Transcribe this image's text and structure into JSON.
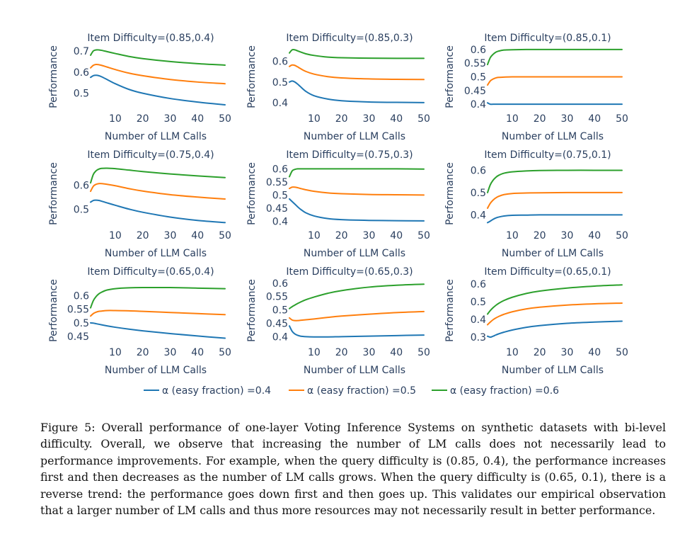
{
  "chart_data": {
    "type": "line",
    "legend_position": "bottom-center",
    "series_names": [
      "α (easy fraction) =0.4",
      "α (easy fraction) =0.5",
      "α (easy fraction) =0.6"
    ],
    "colors": [
      "#1f77b4",
      "#ff7f0e",
      "#2ca02c"
    ],
    "xlabel": "Number of LLM Calls",
    "ylabel": "Performance",
    "xlim": [
      1,
      50
    ],
    "xticks": [
      "10",
      "20",
      "30",
      "40",
      "50"
    ],
    "panels": [
      {
        "title": "Item Difficulty=(0.85,0.4)",
        "ylim": [
          0.435,
          0.72
        ],
        "yticks": [
          "0.5",
          "0.6",
          "0.7"
        ],
        "x": [
          1,
          2,
          3,
          4,
          5,
          7,
          10,
          15,
          20,
          30,
          40,
          50
        ],
        "series": [
          [
            0.575,
            0.583,
            0.585,
            0.583,
            0.578,
            0.565,
            0.545,
            0.518,
            0.5,
            0.475,
            0.458,
            0.445
          ],
          [
            0.62,
            0.632,
            0.636,
            0.635,
            0.632,
            0.624,
            0.612,
            0.595,
            0.583,
            0.565,
            0.553,
            0.545
          ],
          [
            0.68,
            0.7,
            0.705,
            0.705,
            0.703,
            0.697,
            0.688,
            0.674,
            0.664,
            0.65,
            0.64,
            0.633
          ]
        ]
      },
      {
        "title": "Item Difficulty=(0.85,0.3)",
        "ylim": [
          0.38,
          0.67
        ],
        "yticks": [
          "0.4",
          "0.5",
          "0.6"
        ],
        "x": [
          1,
          2,
          3,
          4,
          5,
          7,
          10,
          15,
          20,
          30,
          40,
          50
        ],
        "series": [
          [
            0.5,
            0.505,
            0.5,
            0.49,
            0.478,
            0.455,
            0.434,
            0.418,
            0.41,
            0.404,
            0.402,
            0.401
          ],
          [
            0.575,
            0.582,
            0.58,
            0.573,
            0.565,
            0.551,
            0.538,
            0.526,
            0.52,
            0.515,
            0.513,
            0.512
          ],
          [
            0.64,
            0.655,
            0.655,
            0.65,
            0.645,
            0.636,
            0.628,
            0.62,
            0.617,
            0.615,
            0.614,
            0.614
          ]
        ]
      },
      {
        "title": "Item Difficulty=(0.85,0.1)",
        "ylim": [
          0.39,
          0.61
        ],
        "yticks": [
          "0.4",
          "0.45",
          "0.5",
          "0.55",
          "0.6"
        ],
        "x": [
          1,
          2,
          3,
          4,
          5,
          7,
          10,
          15,
          20,
          30,
          40,
          50
        ],
        "series": [
          [
            0.405,
            0.4,
            0.4,
            0.4,
            0.4,
            0.4,
            0.4,
            0.4,
            0.4,
            0.4,
            0.4,
            0.4
          ],
          [
            0.47,
            0.485,
            0.492,
            0.496,
            0.498,
            0.499,
            0.5,
            0.5,
            0.5,
            0.5,
            0.5,
            0.5
          ],
          [
            0.545,
            0.57,
            0.582,
            0.59,
            0.594,
            0.598,
            0.599,
            0.6,
            0.6,
            0.6,
            0.6,
            0.6
          ]
        ]
      },
      {
        "title": "Item Difficulty=(0.75,0.4)",
        "ylim": [
          0.44,
          0.69
        ],
        "yticks": [
          "0.5",
          "0.6"
        ],
        "x": [
          1,
          2,
          3,
          4,
          5,
          7,
          10,
          15,
          20,
          30,
          40,
          50
        ],
        "series": [
          [
            0.53,
            0.537,
            0.538,
            0.537,
            0.534,
            0.527,
            0.517,
            0.501,
            0.488,
            0.468,
            0.454,
            0.445
          ],
          [
            0.575,
            0.596,
            0.604,
            0.607,
            0.607,
            0.604,
            0.598,
            0.586,
            0.576,
            0.561,
            0.551,
            0.543
          ],
          [
            0.61,
            0.645,
            0.66,
            0.667,
            0.67,
            0.671,
            0.669,
            0.663,
            0.657,
            0.647,
            0.639,
            0.632
          ]
        ]
      },
      {
        "title": "Item Difficulty=(0.75,0.3)",
        "ylim": [
          0.39,
          0.62
        ],
        "yticks": [
          "0.4",
          "0.45",
          "0.5",
          "0.55",
          "0.6"
        ],
        "x": [
          1,
          2,
          3,
          4,
          5,
          7,
          10,
          15,
          20,
          30,
          40,
          50
        ],
        "series": [
          [
            0.485,
            0.475,
            0.465,
            0.455,
            0.446,
            0.432,
            0.42,
            0.41,
            0.406,
            0.403,
            0.402,
            0.401
          ],
          [
            0.525,
            0.53,
            0.53,
            0.528,
            0.525,
            0.52,
            0.514,
            0.508,
            0.505,
            0.502,
            0.501,
            0.5
          ],
          [
            0.57,
            0.592,
            0.598,
            0.6,
            0.6,
            0.6,
            0.6,
            0.6,
            0.6,
            0.6,
            0.6,
            0.599
          ]
        ]
      },
      {
        "title": "Item Difficulty=(0.75,0.1)",
        "ylim": [
          0.36,
          0.63
        ],
        "yticks": [
          "0.4",
          "0.5",
          "0.6"
        ],
        "x": [
          1,
          2,
          3,
          4,
          5,
          7,
          10,
          15,
          20,
          30,
          40,
          50
        ],
        "series": [
          [
            0.365,
            0.372,
            0.38,
            0.386,
            0.39,
            0.395,
            0.398,
            0.399,
            0.4,
            0.4,
            0.4,
            0.4
          ],
          [
            0.43,
            0.452,
            0.466,
            0.476,
            0.483,
            0.491,
            0.496,
            0.498,
            0.499,
            0.5,
            0.5,
            0.5
          ],
          [
            0.5,
            0.535,
            0.555,
            0.568,
            0.577,
            0.587,
            0.593,
            0.597,
            0.599,
            0.6,
            0.6,
            0.6
          ]
        ]
      },
      {
        "title": "Item Difficulty=(0.65,0.4)",
        "ylim": [
          0.435,
          0.655
        ],
        "yticks": [
          "0.45",
          "0.5",
          "0.55",
          "0.6"
        ],
        "x": [
          1,
          2,
          3,
          4,
          5,
          7,
          10,
          15,
          20,
          30,
          40,
          50
        ],
        "series": [
          [
            0.5,
            0.499,
            0.497,
            0.495,
            0.493,
            0.489,
            0.484,
            0.477,
            0.471,
            0.461,
            0.452,
            0.444
          ],
          [
            0.525,
            0.534,
            0.539,
            0.542,
            0.543,
            0.545,
            0.545,
            0.544,
            0.542,
            0.538,
            0.534,
            0.53
          ],
          [
            0.555,
            0.581,
            0.596,
            0.606,
            0.612,
            0.62,
            0.625,
            0.628,
            0.629,
            0.629,
            0.627,
            0.625
          ]
        ]
      },
      {
        "title": "Item Difficulty=(0.65,0.3)",
        "ylim": [
          0.385,
          0.61
        ],
        "yticks": [
          "0.4",
          "0.45",
          "0.5",
          "0.55",
          "0.6"
        ],
        "x": [
          1,
          2,
          3,
          4,
          5,
          7,
          10,
          15,
          20,
          30,
          40,
          50
        ],
        "series": [
          [
            0.44,
            0.42,
            0.41,
            0.405,
            0.402,
            0.4,
            0.399,
            0.399,
            0.4,
            0.402,
            0.404,
            0.406
          ],
          [
            0.47,
            0.462,
            0.46,
            0.46,
            0.461,
            0.463,
            0.466,
            0.472,
            0.477,
            0.484,
            0.49,
            0.494
          ],
          [
            0.505,
            0.512,
            0.518,
            0.524,
            0.529,
            0.538,
            0.548,
            0.562,
            0.572,
            0.585,
            0.592,
            0.596
          ]
        ]
      },
      {
        "title": "Item Difficulty=(0.65,0.1)",
        "ylim": [
          0.28,
          0.62
        ],
        "yticks": [
          "0.3",
          "0.4",
          "0.5",
          "0.6"
        ],
        "x": [
          1,
          2,
          3,
          4,
          5,
          7,
          10,
          15,
          20,
          30,
          40,
          50
        ],
        "series": [
          [
            0.305,
            0.3,
            0.305,
            0.312,
            0.318,
            0.328,
            0.34,
            0.355,
            0.365,
            0.378,
            0.385,
            0.39
          ],
          [
            0.37,
            0.385,
            0.398,
            0.408,
            0.416,
            0.429,
            0.443,
            0.459,
            0.469,
            0.481,
            0.488,
            0.492
          ],
          [
            0.43,
            0.45,
            0.466,
            0.479,
            0.49,
            0.507,
            0.525,
            0.546,
            0.56,
            0.577,
            0.588,
            0.595
          ]
        ]
      }
    ]
  },
  "caption": "Figure 5: Overall performance of one-layer Voting Inference Systems on synthetic datasets with bi-level difficulty. Overall, we observe that increasing the number of LM calls does not necessarily lead to performance improvements. For example, when the query difficulty is (0.85, 0.4), the performance increases first and then decreases as the number of LM calls grows. When the query difficulty is (0.65, 0.1), there is a reverse trend: the performance goes down first and then goes up. This validates our empirical observation that a larger number of LM calls and thus more resources may not necessarily result in better performance."
}
